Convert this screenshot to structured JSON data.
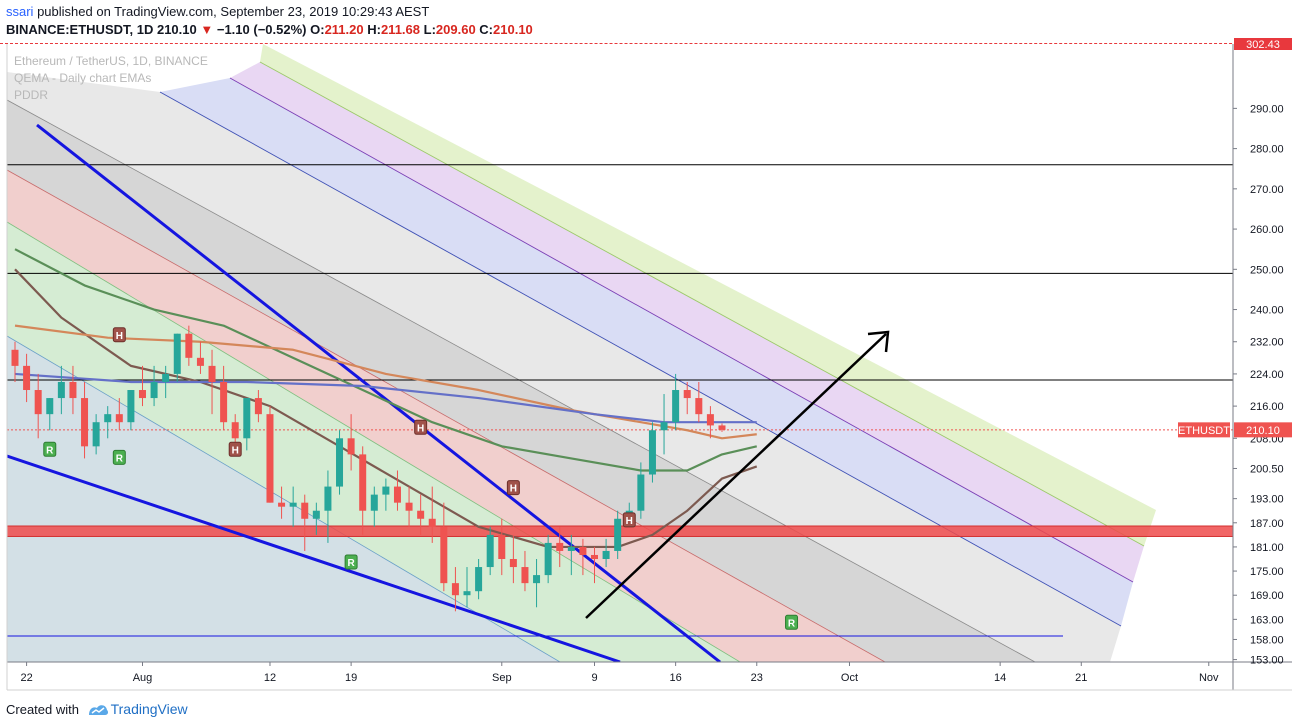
{
  "header": {
    "user": "ssari",
    "published": "published on TradingView.com, September 23, 2019 10:29:43 AEST",
    "symbol": "BINANCE:ETHUSDT, 1D",
    "last": "210.10",
    "change": "−1.10 (−0.52%)",
    "o_label": "O:",
    "o": "211.20",
    "h_label": "H:",
    "h": "211.68",
    "l_label": "L:",
    "l": "209.60",
    "c_label": "C:",
    "c": "210.10"
  },
  "legend": {
    "line1": "Ethereum / TetherUS, 1D, BINANCE",
    "line2": "QEMA - Daily chart EMAs",
    "line3": "PDDR"
  },
  "price_tag": {
    "label": "ETHUSDT",
    "value": "210.10"
  },
  "top_tag": "302.43",
  "footer": {
    "created": "Created with",
    "brand": "TradingView"
  },
  "colors": {
    "up": "#26a69a",
    "down": "#ef5350",
    "blue_line": "#1515e0"
  },
  "chart_data": {
    "type": "candlestick",
    "ylim": [
      152.4,
      306
    ],
    "y_ticks": [
      153,
      158,
      163,
      169,
      175,
      181,
      187,
      193,
      200.5,
      208,
      216,
      224,
      232,
      240,
      250,
      260,
      270,
      280,
      290,
      302.43
    ],
    "y_tick_labels": [
      "153.00",
      "158.00",
      "163.00",
      "169.00",
      "175.00",
      "181.00",
      "187.00",
      "193.00",
      "200.50",
      "208.00",
      "216.00",
      "224.00",
      "232.00",
      "240.00",
      "250.00",
      "260.00",
      "270.00",
      "280.00",
      "290.00",
      "302.43"
    ],
    "x_ticks": [
      {
        "idx": 1,
        "label": "22"
      },
      {
        "idx": 11,
        "label": "Aug"
      },
      {
        "idx": 22,
        "label": "12"
      },
      {
        "idx": 29,
        "label": "19"
      },
      {
        "idx": 42,
        "label": "Sep"
      },
      {
        "idx": 50,
        "label": "9"
      },
      {
        "idx": 57,
        "label": "16"
      },
      {
        "idx": 64,
        "label": "23"
      },
      {
        "idx": 72,
        "label": "Oct"
      },
      {
        "idx": 85,
        "label": "14"
      },
      {
        "idx": 92,
        "label": "21"
      },
      {
        "idx": 103,
        "label": "Nov"
      }
    ],
    "candles": [
      [
        230,
        232,
        222,
        226
      ],
      [
        226,
        229,
        217,
        220
      ],
      [
        220,
        224,
        208,
        214
      ],
      [
        214,
        218,
        210,
        218
      ],
      [
        218,
        226,
        214,
        222
      ],
      [
        222,
        226,
        214,
        218
      ],
      [
        218,
        222,
        203,
        206
      ],
      [
        206,
        214,
        204,
        212
      ],
      [
        212,
        216,
        208,
        214
      ],
      [
        214,
        218,
        210,
        212
      ],
      [
        212,
        220,
        210,
        220
      ],
      [
        220,
        226,
        216,
        218
      ],
      [
        218,
        226,
        216,
        222
      ],
      [
        222,
        226,
        218,
        224
      ],
      [
        224,
        234,
        222,
        234
      ],
      [
        234,
        236,
        226,
        228
      ],
      [
        228,
        232,
        224,
        226
      ],
      [
        226,
        230,
        214,
        222
      ],
      [
        222,
        226,
        210,
        212
      ],
      [
        212,
        214,
        206,
        208
      ],
      [
        208,
        218,
        205,
        218
      ],
      [
        218,
        220,
        212,
        214
      ],
      [
        214,
        216,
        192,
        192
      ],
      [
        192,
        196,
        188,
        191
      ],
      [
        191,
        196,
        186,
        192
      ],
      [
        192,
        194,
        180,
        188
      ],
      [
        188,
        192,
        184,
        190
      ],
      [
        190,
        200,
        182,
        196
      ],
      [
        196,
        210,
        194,
        208
      ],
      [
        208,
        214,
        200,
        204
      ],
      [
        204,
        206,
        184,
        190
      ],
      [
        190,
        196,
        186,
        194
      ],
      [
        194,
        198,
        190,
        196
      ],
      [
        196,
        200,
        190,
        192
      ],
      [
        192,
        196,
        186,
        190
      ],
      [
        190,
        194,
        184,
        188
      ],
      [
        188,
        196,
        182,
        186
      ],
      [
        186,
        192,
        170,
        172
      ],
      [
        172,
        176,
        165,
        169
      ],
      [
        169,
        176,
        166,
        170
      ],
      [
        170,
        178,
        168,
        176
      ],
      [
        176,
        186,
        174,
        184
      ],
      [
        184,
        188,
        174,
        178
      ],
      [
        178,
        184,
        172,
        176
      ],
      [
        176,
        180,
        170,
        172
      ],
      [
        172,
        178,
        166,
        174
      ],
      [
        174,
        184,
        172,
        182
      ],
      [
        182,
        186,
        176,
        180
      ],
      [
        180,
        184,
        174,
        181
      ],
      [
        181,
        183,
        174,
        179
      ],
      [
        179,
        181,
        172,
        178
      ],
      [
        178,
        183,
        176,
        180
      ],
      [
        180,
        190,
        178,
        188
      ],
      [
        188,
        192,
        186,
        190
      ],
      [
        190,
        202,
        188,
        199
      ],
      [
        199,
        212,
        197,
        210
      ],
      [
        210,
        219,
        204,
        212
      ],
      [
        212,
        224,
        210,
        220
      ],
      [
        220,
        222,
        214,
        218
      ],
      [
        218,
        222,
        212,
        214
      ],
      [
        214,
        216,
        208,
        211.2
      ],
      [
        211.2,
        211.68,
        209.6,
        210.1
      ]
    ],
    "lines": [
      {
        "name": "QEMA short",
        "color": "#7d5a50",
        "values": [
          [
            0,
            250
          ],
          [
            4,
            238
          ],
          [
            10,
            226
          ],
          [
            16,
            222
          ],
          [
            22,
            216
          ],
          [
            28,
            206
          ],
          [
            34,
            196
          ],
          [
            40,
            186
          ],
          [
            46,
            181
          ],
          [
            52,
            181
          ],
          [
            55,
            184
          ],
          [
            58,
            190
          ],
          [
            61,
            198
          ],
          [
            64,
            201
          ]
        ]
      },
      {
        "name": "QEMA medium",
        "color": "#5a8f58",
        "values": [
          [
            0,
            255
          ],
          [
            6,
            246
          ],
          [
            12,
            240
          ],
          [
            18,
            236
          ],
          [
            24,
            228
          ],
          [
            30,
            220
          ],
          [
            36,
            212
          ],
          [
            42,
            206
          ],
          [
            48,
            203
          ],
          [
            54,
            200
          ],
          [
            58,
            200
          ],
          [
            61,
            204
          ],
          [
            64,
            206
          ]
        ]
      },
      {
        "name": "QEMA long",
        "color": "#d4875a",
        "values": [
          [
            0,
            236
          ],
          [
            8,
            233
          ],
          [
            16,
            232
          ],
          [
            24,
            230
          ],
          [
            32,
            224
          ],
          [
            40,
            220
          ],
          [
            48,
            215
          ],
          [
            54,
            212
          ],
          [
            58,
            210
          ],
          [
            61,
            208
          ],
          [
            64,
            209
          ]
        ]
      },
      {
        "name": "QEMA longest",
        "color": "#6470c8",
        "values": [
          [
            0,
            224
          ],
          [
            10,
            222
          ],
          [
            20,
            222
          ],
          [
            30,
            221
          ],
          [
            40,
            218
          ],
          [
            50,
            214
          ],
          [
            56,
            212
          ],
          [
            60,
            212
          ],
          [
            64,
            212
          ]
        ]
      }
    ],
    "markers": [
      {
        "idx": 3,
        "price": 208,
        "text": "R",
        "pos": "below"
      },
      {
        "idx": 9,
        "price": 206,
        "text": "R",
        "pos": "below"
      },
      {
        "idx": 9,
        "price": 231,
        "text": "H",
        "pos": "above"
      },
      {
        "idx": 19,
        "price": 208,
        "text": "H",
        "pos": "below"
      },
      {
        "idx": 29,
        "price": 180,
        "text": "R",
        "pos": "below"
      },
      {
        "idx": 35,
        "price": 208,
        "text": "H",
        "pos": "above"
      },
      {
        "idx": 43,
        "price": 193,
        "text": "H",
        "pos": "above"
      },
      {
        "idx": 53,
        "price": 185,
        "text": "H",
        "pos": "above"
      },
      {
        "idx": 67,
        "price": 165,
        "text": "R",
        "pos": "below"
      }
    ],
    "hlines": [
      276,
      249,
      222.5
    ],
    "zone": [
      183.6,
      186.2
    ],
    "grid": false
  }
}
